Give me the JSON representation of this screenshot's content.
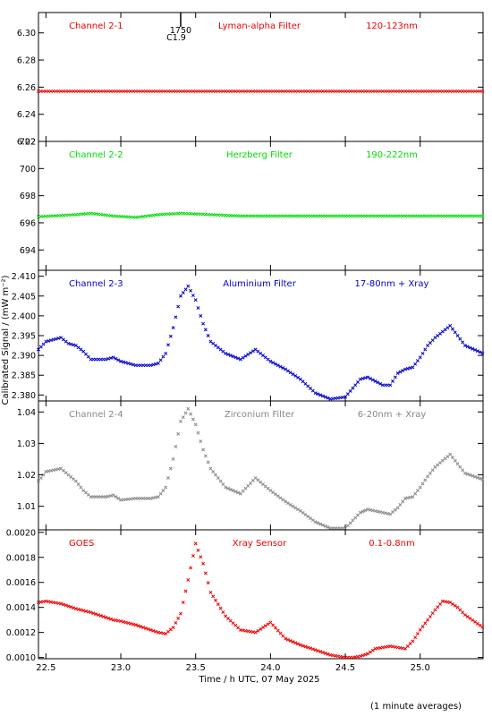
{
  "chart_data": {
    "type": "scatter",
    "xlabel": "Time / h UTC, 07 May 2025",
    "ylabel": "Calibrated Signal / (mW m⁻²)",
    "footnote": "(1 minute averages)",
    "xlim": [
      22.45,
      25.42
    ],
    "xticks": [
      "22.5",
      "23.0",
      "23.5",
      "24.0",
      "24.5",
      "25.0"
    ],
    "event_marker": {
      "x": 23.4,
      "time_label": "1750",
      "class_label": "C1.9"
    },
    "panels": [
      {
        "channel": "Channel 2-1",
        "filter": "Lyman-alpha Filter",
        "band": "120-123nm",
        "color": "#ee0000",
        "ylim": [
          6.22,
          6.315
        ],
        "yticks": [
          "6.22",
          "6.24",
          "6.26",
          "6.28",
          "6.30"
        ],
        "x": [
          22.45,
          23.0,
          23.5,
          24.0,
          24.5,
          25.0,
          25.42
        ],
        "y": [
          6.257,
          6.257,
          6.257,
          6.257,
          6.257,
          6.257,
          6.257
        ]
      },
      {
        "channel": "Channel 2-2",
        "filter": "Herzberg Filter",
        "band": "190-222nm",
        "color": "#00dd00",
        "ylim": [
          692.5,
          702.0
        ],
        "yticks": [
          "694",
          "696",
          "698",
          "700",
          "702"
        ],
        "x": [
          22.45,
          22.7,
          22.8,
          22.95,
          23.1,
          23.25,
          23.4,
          23.6,
          23.8,
          24.0,
          24.5,
          25.0,
          25.42
        ],
        "y": [
          696.45,
          696.6,
          696.7,
          696.5,
          696.4,
          696.6,
          696.7,
          696.6,
          696.5,
          696.5,
          696.5,
          696.5,
          696.5
        ]
      },
      {
        "channel": "Channel 2-3",
        "filter": "Aluminium Filter",
        "band": "17-80nm + Xray",
        "color": "#0000cc",
        "ylim": [
          2.3785,
          2.4115
        ],
        "yticks": [
          "2.380",
          "2.385",
          "2.390",
          "2.395",
          "2.400",
          "2.405",
          "2.410"
        ],
        "x": [
          22.45,
          22.5,
          22.6,
          22.65,
          22.7,
          22.75,
          22.8,
          22.9,
          22.95,
          23.0,
          23.1,
          23.2,
          23.25,
          23.3,
          23.35,
          23.4,
          23.45,
          23.5,
          23.55,
          23.6,
          23.7,
          23.8,
          23.9,
          24.0,
          24.1,
          24.2,
          24.3,
          24.4,
          24.5,
          24.6,
          24.65,
          24.7,
          24.75,
          24.8,
          24.85,
          24.9,
          24.95,
          25.0,
          25.05,
          25.1,
          25.15,
          25.2,
          25.25,
          25.3,
          25.42
        ],
        "y": [
          2.3915,
          2.3935,
          2.3945,
          2.393,
          2.3925,
          2.391,
          2.389,
          2.389,
          2.3895,
          2.3885,
          2.3875,
          2.3875,
          2.388,
          2.3905,
          2.397,
          2.405,
          2.4075,
          2.404,
          2.398,
          2.3935,
          2.3905,
          2.389,
          2.3915,
          2.3885,
          2.3865,
          2.384,
          2.3805,
          2.379,
          2.3795,
          2.384,
          2.3845,
          2.3835,
          2.3825,
          2.3825,
          2.3855,
          2.3865,
          2.387,
          2.3895,
          2.3925,
          2.3945,
          2.396,
          2.3975,
          2.395,
          2.3925,
          2.3905
        ]
      },
      {
        "channel": "Channel 2-4",
        "filter": "Zirconium Filter",
        "band": "6-20nm + Xray",
        "color": "#888888",
        "ylim": [
          1.0025,
          1.0435
        ],
        "yticks": [
          "1.01",
          "1.02",
          "1.03",
          "1.04"
        ],
        "x": [
          22.45,
          22.5,
          22.6,
          22.65,
          22.7,
          22.75,
          22.8,
          22.9,
          22.95,
          23.0,
          23.1,
          23.2,
          23.25,
          23.3,
          23.35,
          23.4,
          23.45,
          23.5,
          23.55,
          23.6,
          23.7,
          23.8,
          23.9,
          24.0,
          24.1,
          24.2,
          24.3,
          24.4,
          24.5,
          24.6,
          24.65,
          24.7,
          24.75,
          24.8,
          24.85,
          24.9,
          24.95,
          25.0,
          25.05,
          25.1,
          25.15,
          25.2,
          25.25,
          25.3,
          25.42
        ],
        "y": [
          1.018,
          1.021,
          1.022,
          1.02,
          1.018,
          1.015,
          1.013,
          1.013,
          1.0135,
          1.012,
          1.0125,
          1.0125,
          1.013,
          1.016,
          1.025,
          1.037,
          1.041,
          1.036,
          1.028,
          1.022,
          1.016,
          1.014,
          1.019,
          1.015,
          1.0115,
          1.0085,
          1.005,
          1.003,
          1.003,
          1.008,
          1.009,
          1.0085,
          1.008,
          1.0075,
          1.0095,
          1.0125,
          1.013,
          1.016,
          1.0195,
          1.0225,
          1.0245,
          1.0265,
          1.0235,
          1.0205,
          1.0185
        ]
      },
      {
        "channel": "GOES",
        "filter": "Xray Sensor",
        "band": "0.1-0.8nm",
        "color": "#ee0000",
        "ylim": [
          0.00099,
          0.00202
        ],
        "yticks": [
          "0.0010",
          "0.0012",
          "0.0014",
          "0.0016",
          "0.0018",
          "0.0020"
        ],
        "x": [
          22.45,
          22.5,
          22.6,
          22.7,
          22.8,
          22.9,
          22.95,
          23.0,
          23.1,
          23.15,
          23.2,
          23.25,
          23.3,
          23.35,
          23.4,
          23.45,
          23.5,
          23.55,
          23.6,
          23.7,
          23.8,
          23.9,
          24.0,
          24.1,
          24.2,
          24.3,
          24.4,
          24.5,
          24.55,
          24.6,
          24.65,
          24.7,
          24.8,
          24.85,
          24.9,
          24.95,
          25.0,
          25.05,
          25.1,
          25.15,
          25.2,
          25.25,
          25.3,
          25.42
        ],
        "y": [
          0.00144,
          0.00145,
          0.00143,
          0.00139,
          0.00136,
          0.00132,
          0.0013,
          0.00129,
          0.00126,
          0.00124,
          0.00122,
          0.0012,
          0.00119,
          0.00124,
          0.00135,
          0.00162,
          0.00191,
          0.00175,
          0.00152,
          0.00133,
          0.00122,
          0.0012,
          0.00128,
          0.00115,
          0.0011,
          0.00106,
          0.00102,
          0.001,
          0.001,
          0.00101,
          0.00103,
          0.00107,
          0.00109,
          0.00108,
          0.00107,
          0.00113,
          0.00122,
          0.0013,
          0.00138,
          0.00145,
          0.00144,
          0.0014,
          0.00134,
          0.00124
        ]
      }
    ]
  }
}
